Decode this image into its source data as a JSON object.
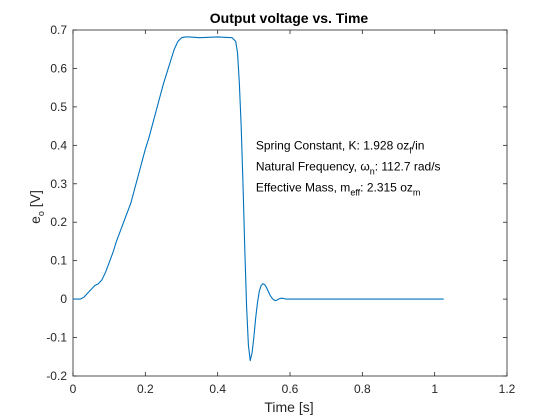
{
  "chart_data": {
    "type": "line",
    "title": "Output voltage vs. Time",
    "xlabel": "Time [s]",
    "ylabel_main": "e",
    "ylabel_sub": "o",
    "ylabel_unit": " [V]",
    "xlim": [
      0,
      1.2
    ],
    "ylim": [
      -0.2,
      0.7
    ],
    "xticks": [
      0,
      0.2,
      0.4,
      0.6,
      0.8,
      1,
      1.2
    ],
    "xtick_labels": [
      "0",
      "0.2",
      "0.4",
      "0.6",
      "0.8",
      "1",
      "1.2"
    ],
    "yticks": [
      -0.2,
      -0.1,
      0,
      0.1,
      0.2,
      0.3,
      0.4,
      0.5,
      0.6,
      0.7
    ],
    "ytick_labels": [
      "-0.2",
      "-0.1",
      "0",
      "0.1",
      "0.2",
      "0.3",
      "0.4",
      "0.5",
      "0.6",
      "0.7"
    ],
    "grid": false,
    "line_color": "#0072BD",
    "series": [
      {
        "x": [
          0,
          0.01,
          0.02,
          0.03,
          0.04,
          0.05,
          0.06,
          0.07,
          0.08,
          0.09,
          0.1,
          0.11,
          0.12,
          0.13,
          0.14,
          0.15,
          0.16,
          0.17,
          0.18,
          0.19,
          0.2,
          0.21,
          0.22,
          0.23,
          0.24,
          0.25,
          0.26,
          0.27,
          0.28,
          0.29,
          0.3,
          0.31,
          0.32,
          0.35,
          0.4,
          0.44,
          0.45,
          0.455,
          0.46,
          0.465,
          0.47,
          0.475,
          0.48,
          0.485,
          0.49,
          0.495,
          0.5,
          0.505,
          0.51,
          0.515,
          0.52,
          0.525,
          0.53,
          0.535,
          0.54,
          0.545,
          0.55,
          0.555,
          0.56,
          0.565,
          0.57,
          0.575,
          0.58,
          0.585,
          0.59,
          0.6,
          0.65,
          0.7,
          0.8,
          0.9,
          1.0,
          1.025
        ],
        "y": [
          0,
          0,
          0,
          0.005,
          0.015,
          0.025,
          0.035,
          0.04,
          0.05,
          0.07,
          0.095,
          0.12,
          0.15,
          0.175,
          0.2,
          0.225,
          0.25,
          0.285,
          0.32,
          0.355,
          0.39,
          0.42,
          0.455,
          0.49,
          0.525,
          0.56,
          0.59,
          0.62,
          0.65,
          0.67,
          0.68,
          0.682,
          0.682,
          0.68,
          0.682,
          0.68,
          0.67,
          0.64,
          0.56,
          0.45,
          0.3,
          0.13,
          -0.02,
          -0.12,
          -0.16,
          -0.14,
          -0.1,
          -0.05,
          -0.01,
          0.02,
          0.035,
          0.04,
          0.038,
          0.03,
          0.02,
          0.01,
          0.003,
          -0.002,
          -0.004,
          -0.002,
          0.001,
          0.002,
          0.002,
          0.001,
          0,
          0,
          0,
          0,
          0,
          0,
          0,
          0
        ]
      }
    ],
    "annotations": [
      {
        "x": 0.5,
        "y": 0.4,
        "parts": [
          {
            "text": "Spring Constant, K: 1.928 oz",
            "sub": false
          },
          {
            "text": "f",
            "sub": true
          },
          {
            "text": "/in",
            "sub": false
          }
        ]
      },
      {
        "x": 0.5,
        "y": 0.345,
        "parts": [
          {
            "text": "Natural Frequency, ω",
            "sub": false
          },
          {
            "text": "n",
            "sub": true
          },
          {
            "text": ": 112.7 rad/s",
            "sub": false
          }
        ]
      },
      {
        "x": 0.5,
        "y": 0.29,
        "parts": [
          {
            "text": "Effective Mass, m",
            "sub": false
          },
          {
            "text": "eff",
            "sub": true
          },
          {
            "text": ": 2.315 oz",
            "sub": false
          },
          {
            "text": "m",
            "sub": true
          }
        ]
      }
    ]
  }
}
